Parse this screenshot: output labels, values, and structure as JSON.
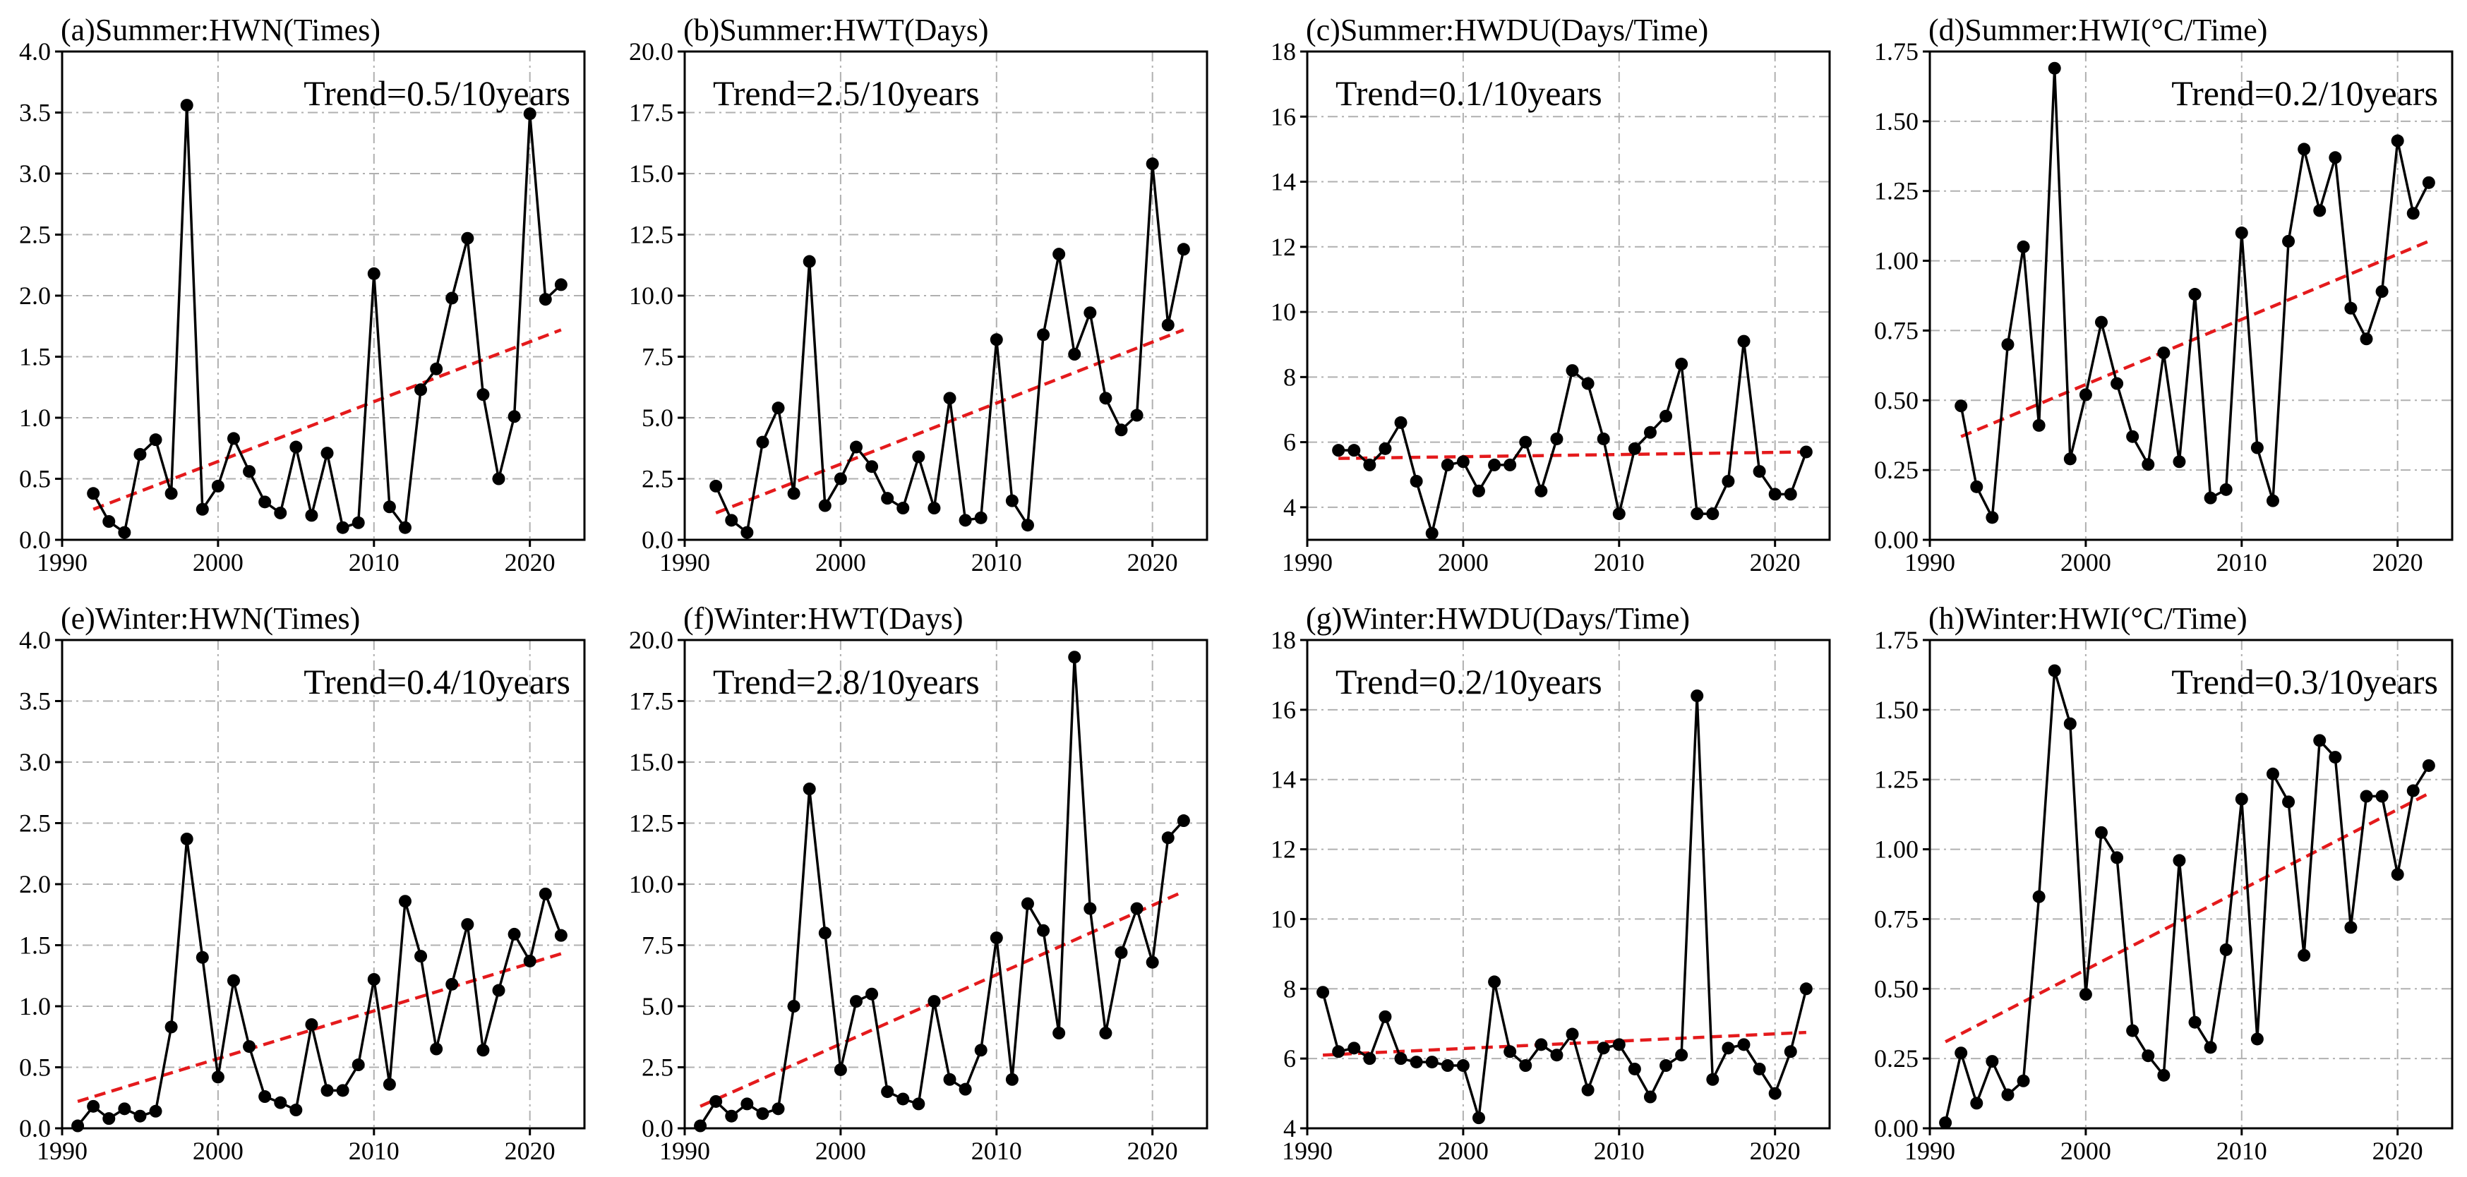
{
  "chart_data": [
    {
      "type": "line",
      "title": "(a)Summer:HWN(Times)",
      "trend_label": "Trend=0.5/10years",
      "trend_position": "top-right",
      "xlim": [
        1990,
        2023.5
      ],
      "xticks": [
        1990,
        2000,
        2010,
        2020
      ],
      "ylim": [
        0,
        4
      ],
      "yticks": [
        0.0,
        0.5,
        1.0,
        1.5,
        2.0,
        2.5,
        3.0,
        3.5,
        4.0
      ],
      "ytick_decimals": 1,
      "x": [
        1992,
        1993,
        1994,
        1995,
        1996,
        1997,
        1998,
        1999,
        2000,
        2001,
        2002,
        2003,
        2004,
        2005,
        2006,
        2007,
        2008,
        2009,
        2010,
        2011,
        2012,
        2013,
        2014,
        2015,
        2016,
        2017,
        2018,
        2019,
        2020,
        2021,
        2022
      ],
      "values": [
        0.38,
        0.15,
        0.06,
        0.7,
        0.82,
        0.38,
        3.56,
        0.25,
        0.44,
        0.83,
        0.56,
        0.31,
        0.22,
        0.76,
        0.2,
        0.71,
        0.1,
        0.14,
        2.18,
        0.27,
        0.1,
        1.23,
        1.4,
        1.98,
        2.47,
        1.19,
        0.5,
        1.01,
        3.49,
        1.97,
        2.09
      ],
      "trend": {
        "x": [
          1992,
          2022
        ],
        "y": [
          0.25,
          1.72
        ]
      }
    },
    {
      "type": "line",
      "title": "(b)Summer:HWT(Days)",
      "trend_label": "Trend=2.5/10years",
      "trend_position": "top-left",
      "xlim": [
        1990,
        2023.5
      ],
      "xticks": [
        1990,
        2000,
        2010,
        2020
      ],
      "ylim": [
        0,
        20
      ],
      "yticks": [
        0.0,
        2.5,
        5.0,
        7.5,
        10.0,
        12.5,
        15.0,
        17.5,
        20.0
      ],
      "ytick_decimals": 1,
      "x": [
        1992,
        1993,
        1994,
        1995,
        1996,
        1997,
        1998,
        1999,
        2000,
        2001,
        2002,
        2003,
        2004,
        2005,
        2006,
        2007,
        2008,
        2009,
        2010,
        2011,
        2012,
        2013,
        2014,
        2015,
        2016,
        2017,
        2018,
        2019,
        2020,
        2021,
        2022
      ],
      "values": [
        2.2,
        0.8,
        0.3,
        4.0,
        5.4,
        1.9,
        11.4,
        1.4,
        2.5,
        3.8,
        3.0,
        1.7,
        1.3,
        3.4,
        1.3,
        5.8,
        0.8,
        0.9,
        8.2,
        1.6,
        0.6,
        8.4,
        11.7,
        7.6,
        9.3,
        5.8,
        4.5,
        5.1,
        15.4,
        8.8,
        11.9
      ],
      "trend": {
        "x": [
          1992,
          2022
        ],
        "y": [
          1.1,
          8.6
        ]
      }
    },
    {
      "type": "line",
      "title": "(c)Summer:HWDU(Days/Time)",
      "trend_label": "Trend=0.1/10years",
      "trend_position": "top-left",
      "xlim": [
        1990,
        2023.5
      ],
      "xticks": [
        1990,
        2000,
        2010,
        2020
      ],
      "ylim": [
        3,
        18
      ],
      "yticks": [
        4,
        6,
        8,
        10,
        12,
        14,
        16,
        18
      ],
      "ytick_decimals": 0,
      "x": [
        1992,
        1993,
        1994,
        1995,
        1996,
        1997,
        1998,
        1999,
        2000,
        2001,
        2002,
        2003,
        2004,
        2005,
        2006,
        2007,
        2008,
        2009,
        2010,
        2011,
        2012,
        2013,
        2014,
        2015,
        2016,
        2017,
        2018,
        2019,
        2020,
        2021,
        2022
      ],
      "values": [
        5.75,
        5.75,
        5.3,
        5.8,
        6.6,
        4.8,
        3.2,
        5.3,
        5.4,
        4.5,
        5.3,
        5.3,
        6.0,
        4.5,
        6.1,
        8.2,
        7.8,
        6.1,
        3.8,
        5.8,
        6.3,
        6.8,
        8.4,
        3.8,
        3.8,
        4.8,
        9.1,
        5.1,
        4.4,
        4.4,
        5.7
      ],
      "trend": {
        "x": [
          1992,
          2022
        ],
        "y": [
          5.5,
          5.7
        ]
      }
    },
    {
      "type": "line",
      "title": "(d)Summer:HWI(°C/Time)",
      "trend_label": "Trend=0.2/10years",
      "trend_position": "top-right",
      "xlim": [
        1990,
        2023.5
      ],
      "xticks": [
        1990,
        2000,
        2010,
        2020
      ],
      "ylim": [
        0,
        1.75
      ],
      "yticks": [
        0.0,
        0.25,
        0.5,
        0.75,
        1.0,
        1.25,
        1.5,
        1.75
      ],
      "ytick_decimals": 2,
      "x": [
        1992,
        1993,
        1994,
        1995,
        1996,
        1997,
        1998,
        1999,
        2000,
        2001,
        2002,
        2003,
        2004,
        2005,
        2006,
        2007,
        2008,
        2009,
        2010,
        2011,
        2012,
        2013,
        2014,
        2015,
        2016,
        2017,
        2018,
        2019,
        2020,
        2021,
        2022
      ],
      "values": [
        0.48,
        0.19,
        0.08,
        0.7,
        1.05,
        0.41,
        1.69,
        0.29,
        0.52,
        0.78,
        0.56,
        0.37,
        0.27,
        0.67,
        0.28,
        0.88,
        0.15,
        0.18,
        1.1,
        0.33,
        0.14,
        1.07,
        1.4,
        1.18,
        1.37,
        0.83,
        0.72,
        0.89,
        1.43,
        1.17,
        1.28
      ],
      "trend": {
        "x": [
          1992,
          2022
        ],
        "y": [
          0.37,
          1.07
        ]
      }
    },
    {
      "type": "line",
      "title": "(e)Winter:HWN(Times)",
      "trend_label": "Trend=0.4/10years",
      "trend_position": "top-right",
      "xlim": [
        1990,
        2023.5
      ],
      "xticks": [
        1990,
        2000,
        2010,
        2020
      ],
      "ylim": [
        0,
        4
      ],
      "yticks": [
        0.0,
        0.5,
        1.0,
        1.5,
        2.0,
        2.5,
        3.0,
        3.5,
        4.0
      ],
      "ytick_decimals": 1,
      "x": [
        1991,
        1992,
        1993,
        1994,
        1995,
        1996,
        1997,
        1998,
        1999,
        2000,
        2001,
        2002,
        2003,
        2004,
        2005,
        2006,
        2007,
        2008,
        2009,
        2010,
        2011,
        2012,
        2013,
        2014,
        2015,
        2016,
        2017,
        2018,
        2019,
        2020,
        2021,
        2022
      ],
      "values": [
        0.02,
        0.18,
        0.08,
        0.16,
        0.1,
        0.14,
        0.83,
        2.37,
        1.4,
        0.42,
        1.21,
        0.67,
        0.26,
        0.21,
        0.15,
        0.85,
        0.31,
        0.31,
        0.52,
        1.22,
        0.36,
        1.86,
        1.41,
        0.65,
        1.18,
        1.67,
        0.64,
        1.13,
        1.59,
        1.37,
        1.92,
        1.58
      ],
      "trend": {
        "x": [
          1991,
          2022
        ],
        "y": [
          0.22,
          1.43
        ]
      }
    },
    {
      "type": "line",
      "title": "(f)Winter:HWT(Days)",
      "trend_label": "Trend=2.8/10years",
      "trend_position": "top-left",
      "xlim": [
        1990,
        2023.5
      ],
      "xticks": [
        1990,
        2000,
        2010,
        2020
      ],
      "ylim": [
        0,
        20
      ],
      "yticks": [
        0.0,
        2.5,
        5.0,
        7.5,
        10.0,
        12.5,
        15.0,
        17.5,
        20.0
      ],
      "ytick_decimals": 1,
      "x": [
        1991,
        1992,
        1993,
        1994,
        1995,
        1996,
        1997,
        1998,
        1999,
        2000,
        2001,
        2002,
        2003,
        2004,
        2005,
        2006,
        2007,
        2008,
        2009,
        2010,
        2011,
        2012,
        2013,
        2014,
        2015,
        2016,
        2017,
        2018,
        2019,
        2020,
        2021,
        2022
      ],
      "values": [
        0.1,
        1.1,
        0.5,
        1.0,
        0.6,
        0.8,
        5.0,
        13.9,
        8.0,
        2.4,
        5.2,
        5.5,
        1.5,
        1.2,
        1.0,
        5.2,
        2.0,
        1.6,
        3.2,
        7.8,
        2.0,
        9.2,
        8.1,
        3.9,
        19.3,
        9.0,
        3.9,
        7.2,
        9.0,
        6.8,
        11.9,
        12.6
      ],
      "trend": {
        "x": [
          1991,
          2022
        ],
        "y": [
          0.9,
          9.7
        ]
      }
    },
    {
      "type": "line",
      "title": "(g)Winter:HWDU(Days/Time)",
      "trend_label": "Trend=0.2/10years",
      "trend_position": "top-left",
      "xlim": [
        1990,
        2023.5
      ],
      "xticks": [
        1990,
        2000,
        2010,
        2020
      ],
      "ylim": [
        4,
        18
      ],
      "yticks": [
        4,
        6,
        8,
        10,
        12,
        14,
        16,
        18
      ],
      "ytick_decimals": 0,
      "x": [
        1991,
        1992,
        1993,
        1994,
        1995,
        1996,
        1997,
        1998,
        1999,
        2000,
        2001,
        2002,
        2003,
        2004,
        2005,
        2006,
        2007,
        2008,
        2009,
        2010,
        2011,
        2012,
        2013,
        2014,
        2015,
        2016,
        2017,
        2018,
        2019,
        2020,
        2021,
        2022
      ],
      "values": [
        7.9,
        6.2,
        6.3,
        6.0,
        7.2,
        6.0,
        5.9,
        5.9,
        5.8,
        5.8,
        4.3,
        8.2,
        6.2,
        5.8,
        6.4,
        6.1,
        6.7,
        5.1,
        6.3,
        6.4,
        5.7,
        4.9,
        5.8,
        6.1,
        16.4,
        5.4,
        6.3,
        6.4,
        5.7,
        5.0,
        6.2,
        8.0
      ],
      "trend": {
        "x": [
          1991,
          2022
        ],
        "y": [
          6.1,
          6.75
        ]
      }
    },
    {
      "type": "line",
      "title": "(h)Winter:HWI(°C/Time)",
      "trend_label": "Trend=0.3/10years",
      "trend_position": "top-right",
      "xlim": [
        1990,
        2023.5
      ],
      "xticks": [
        1990,
        2000,
        2010,
        2020
      ],
      "ylim": [
        0,
        1.75
      ],
      "yticks": [
        0.0,
        0.25,
        0.5,
        0.75,
        1.0,
        1.25,
        1.5,
        1.75
      ],
      "ytick_decimals": 2,
      "x": [
        1991,
        1992,
        1993,
        1994,
        1995,
        1996,
        1997,
        1998,
        1999,
        2000,
        2001,
        2002,
        2003,
        2004,
        2005,
        2006,
        2007,
        2008,
        2009,
        2010,
        2011,
        2012,
        2013,
        2014,
        2015,
        2016,
        2017,
        2018,
        2019,
        2020,
        2021,
        2022
      ],
      "values": [
        0.02,
        0.27,
        0.09,
        0.24,
        0.12,
        0.17,
        0.83,
        1.64,
        1.45,
        0.48,
        1.06,
        0.97,
        0.35,
        0.26,
        0.19,
        0.96,
        0.38,
        0.29,
        0.64,
        1.18,
        0.32,
        1.27,
        1.17,
        0.62,
        1.39,
        1.33,
        0.72,
        1.19,
        1.19,
        0.91,
        1.21,
        1.3
      ],
      "trend": {
        "x": [
          1991,
          2022
        ],
        "y": [
          0.31,
          1.2
        ]
      }
    }
  ],
  "colors": {
    "series": "#000000",
    "trend": "#e41a1c",
    "grid": "#b0b0b0"
  }
}
